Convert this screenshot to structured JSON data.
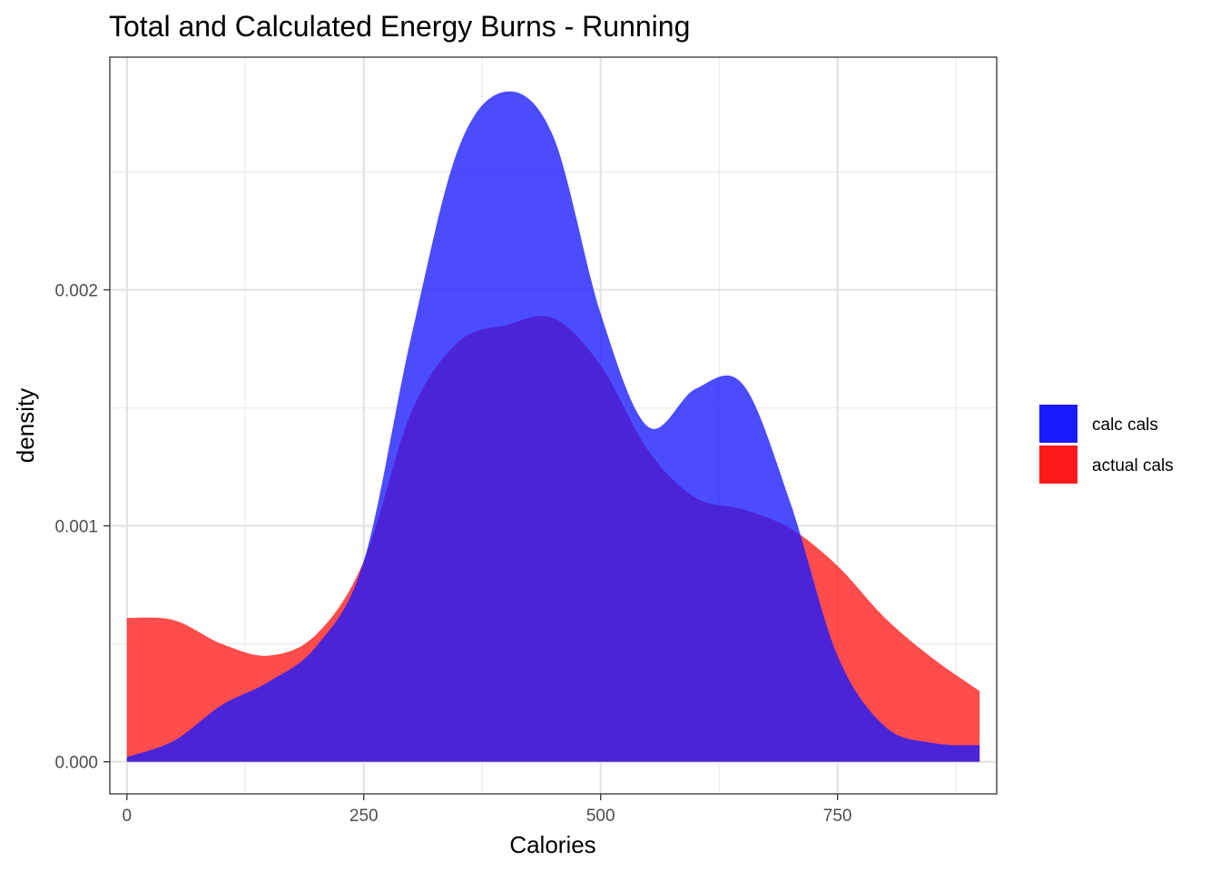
{
  "chart_data": {
    "type": "area",
    "subtype": "density",
    "title": "Total and Calculated Energy Burns - Running",
    "xlabel": "Calories",
    "ylabel": "density",
    "xlim": [
      -18,
      918
    ],
    "ylim": [
      -0.000136,
      0.002986
    ],
    "x_ticks": [
      0,
      250,
      500,
      750
    ],
    "x_tick_labels": [
      "0",
      "250",
      "500",
      "750"
    ],
    "y_ticks": [
      0,
      0.001,
      0.002
    ],
    "y_tick_labels": [
      "0.000",
      "0.001",
      "0.002"
    ],
    "grid": true,
    "legend_position": "right",
    "x": [
      0,
      50,
      100,
      150,
      200,
      250,
      300,
      350,
      400,
      450,
      500,
      550,
      600,
      650,
      700,
      750,
      800,
      850,
      900
    ],
    "series": [
      {
        "name": "calc cals",
        "color": "#1a1aff",
        "values": [
          2e-05,
          9e-05,
          0.00024,
          0.00034,
          0.00049,
          0.00085,
          0.0018,
          0.0026,
          0.00284,
          0.00265,
          0.0019,
          0.00142,
          0.00158,
          0.0016,
          0.0011,
          0.00045,
          0.00015,
          8e-05,
          7e-05
        ]
      },
      {
        "name": "actual cals",
        "color": "#ff1a1a",
        "values": [
          0.00061,
          0.0006,
          0.0005,
          0.00045,
          0.00054,
          0.00085,
          0.00148,
          0.00178,
          0.00185,
          0.00188,
          0.00168,
          0.00132,
          0.00112,
          0.00107,
          0.00099,
          0.00083,
          0.00061,
          0.00044,
          0.0003
        ]
      }
    ]
  }
}
